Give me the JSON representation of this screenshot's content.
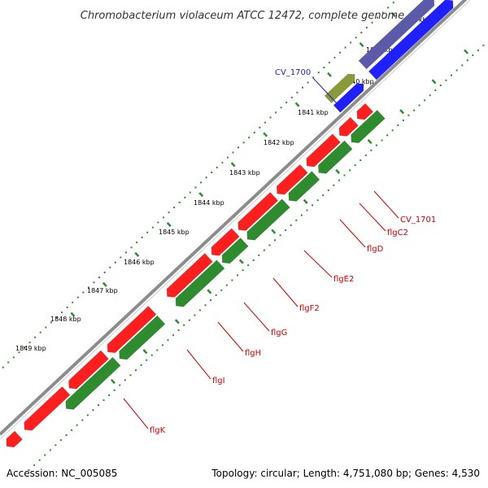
{
  "title": "Chromobacterium violaceum ATCC 12472, complete genome",
  "footer": {
    "accession": "Accession: NC_005085",
    "summary": "Topology: circular; Length: 4,751,080 bp; Genes: 4,530"
  },
  "colors": {
    "forward_cds": "#1f1fff",
    "reverse_cds": "#ff1f1f",
    "gene": "#2e8b2e",
    "trna_track": "#5a5aa8",
    "other_feature": "#8a9a3a",
    "forward_label": "#1f1fcc",
    "reverse_label": "#cc0000",
    "tick_dots": "#2e8b2e",
    "backbone": "#8c8c8c"
  },
  "kbp_ticks": [
    {
      "kbp": 1838,
      "label": "kbp"
    },
    {
      "kbp": 1839,
      "label": "1839 kbp"
    },
    {
      "kbp": 1840,
      "label": "1840 kbp"
    },
    {
      "kbp": 1841,
      "label": "1841 kbp"
    },
    {
      "kbp": 1842,
      "label": "1842 kbp"
    },
    {
      "kbp": 1843,
      "label": "1843 kbp"
    },
    {
      "kbp": 1844,
      "label": "1844 kbp"
    },
    {
      "kbp": 1845,
      "label": "1845 kbp"
    },
    {
      "kbp": 1846,
      "label": "1846 kbp"
    },
    {
      "kbp": 1847,
      "label": "1847 kbp"
    },
    {
      "kbp": 1848,
      "label": "1848 kbp"
    },
    {
      "kbp": 1849,
      "label": "1849 kbp"
    }
  ],
  "gene_labels": [
    {
      "name": "CV_1700",
      "strand": "forward"
    },
    {
      "name": "CV_1701",
      "strand": "reverse"
    },
    {
      "name": "flgC2",
      "strand": "reverse"
    },
    {
      "name": "flgD",
      "strand": "reverse"
    },
    {
      "name": "flgE2",
      "strand": "reverse"
    },
    {
      "name": "flgF2",
      "strand": "reverse"
    },
    {
      "name": "flgG",
      "strand": "reverse"
    },
    {
      "name": "flgH",
      "strand": "reverse"
    },
    {
      "name": "flgI",
      "strand": "reverse"
    },
    {
      "name": "flgK",
      "strand": "reverse"
    }
  ]
}
